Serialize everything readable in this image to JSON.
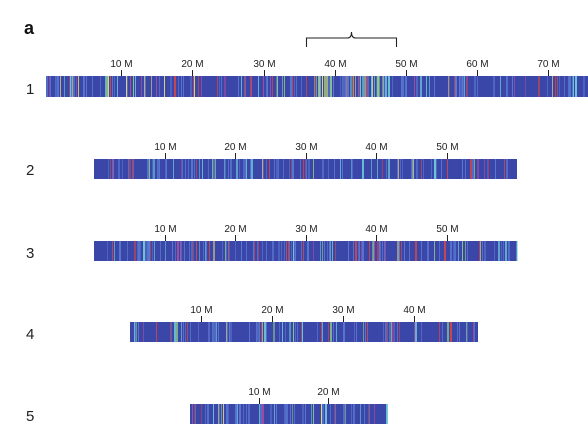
{
  "panel_label": "a",
  "tick_label_suffix": " M",
  "colors": {
    "base": "#3a46a8",
    "blue_light": "#5a78d0",
    "cyan": "#6cc7d6",
    "green": "#8ec98a",
    "yellow": "#e6d874",
    "orange": "#e39a55",
    "red": "#c9474f",
    "magenta": "#a64c9c",
    "tick": "#222222",
    "text": "#222222"
  },
  "hotspot_bracket": {
    "chromosome": "1",
    "from_mb": 37.0,
    "to_mb": 47.5
  },
  "chromosomes": [
    {
      "name": "1",
      "length_mb": 75.5,
      "ticks_mb": [
        10,
        20,
        30,
        40,
        50,
        60,
        70
      ]
    },
    {
      "name": "2",
      "length_mb": 60.0,
      "ticks_mb": [
        10,
        20,
        30,
        40,
        50
      ]
    },
    {
      "name": "3",
      "length_mb": 60.0,
      "ticks_mb": [
        10,
        20,
        30,
        40,
        50
      ]
    },
    {
      "name": "4",
      "length_mb": 49.0,
      "ticks_mb": [
        10,
        20,
        30,
        40
      ]
    },
    {
      "name": "5",
      "length_mb": 28.5,
      "ticks_mb": [
        10,
        20
      ]
    }
  ]
}
